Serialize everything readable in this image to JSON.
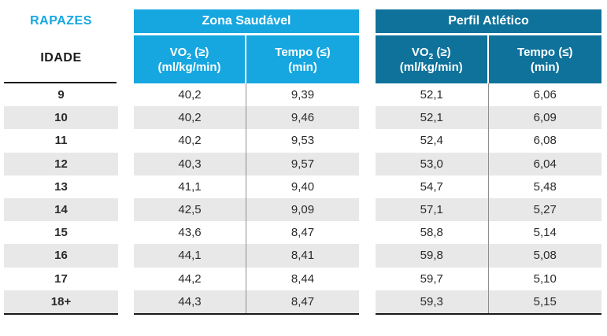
{
  "table": {
    "group_label": "RAPAZES",
    "age_header": "IDADE",
    "sections": [
      {
        "id": "zona",
        "title": "Zona Saudável"
      },
      {
        "id": "perfil",
        "title": "Perfil Atlético"
      }
    ],
    "column_headers": {
      "vo2_base": "VO",
      "vo2_subscript": "2",
      "vo2_condition": "(≥)",
      "vo2_unit": "(ml/kg/min)",
      "tempo_label": "Tempo (≤)",
      "tempo_unit": "(min)"
    },
    "rows": [
      {
        "age": "9",
        "zona_vo2": "40,2",
        "zona_tempo": "9,39",
        "perfil_vo2": "52,1",
        "perfil_tempo": "6,06"
      },
      {
        "age": "10",
        "zona_vo2": "40,2",
        "zona_tempo": "9,46",
        "perfil_vo2": "52,1",
        "perfil_tempo": "6,09"
      },
      {
        "age": "11",
        "zona_vo2": "40,2",
        "zona_tempo": "9,53",
        "perfil_vo2": "52,4",
        "perfil_tempo": "6,08"
      },
      {
        "age": "12",
        "zona_vo2": "40,3",
        "zona_tempo": "9,57",
        "perfil_vo2": "53,0",
        "perfil_tempo": "6,04"
      },
      {
        "age": "13",
        "zona_vo2": "41,1",
        "zona_tempo": "9,40",
        "perfil_vo2": "54,7",
        "perfil_tempo": "5,48"
      },
      {
        "age": "14",
        "zona_vo2": "42,5",
        "zona_tempo": "9,09",
        "perfil_vo2": "57,1",
        "perfil_tempo": "5,27"
      },
      {
        "age": "15",
        "zona_vo2": "43,6",
        "zona_tempo": "8,47",
        "perfil_vo2": "58,8",
        "perfil_tempo": "5,14"
      },
      {
        "age": "16",
        "zona_vo2": "44,1",
        "zona_tempo": "8,41",
        "perfil_vo2": "59,8",
        "perfil_tempo": "5,08"
      },
      {
        "age": "17",
        "zona_vo2": "44,2",
        "zona_tempo": "8,44",
        "perfil_vo2": "59,7",
        "perfil_tempo": "5,10"
      },
      {
        "age": "18+",
        "zona_vo2": "44,3",
        "zona_tempo": "8,47",
        "perfil_vo2": "59,3",
        "perfil_tempo": "5,15"
      }
    ]
  },
  "colors": {
    "accent_light_blue": "#16A7E0",
    "accent_dark_blue": "#0E729B",
    "stripe_gray": "#E8E8E8",
    "divider_gray": "#8E8E8E",
    "line_black": "#1A1A1A",
    "text_dark": "#2B2B2B",
    "header_text_white": "#FFFFFF"
  }
}
